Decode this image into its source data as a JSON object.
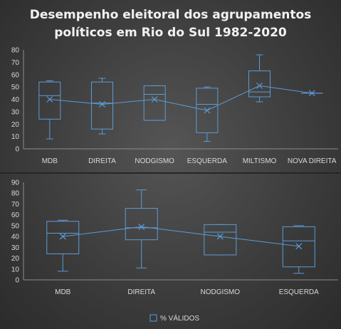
{
  "title_line1": "Desempenho eleitoral dos agrupamentos",
  "title_line2": "políticos em Rio do Sul 1982-2020",
  "legend_label": "% VÁLIDOS",
  "colors": {
    "box": "#5b9bd5",
    "text": "#d9d9d9",
    "grid": "#5a5a5a"
  },
  "chart_data": [
    {
      "type": "box",
      "ylim": [
        0,
        80
      ],
      "yticks": [
        0,
        10,
        20,
        30,
        40,
        50,
        60,
        70,
        80
      ],
      "grid": false,
      "categories": [
        "MDB",
        "DIREITA",
        "NODGISMO",
        "ESQUERDA",
        "MILTISMO",
        "NOVA DIREITA"
      ],
      "boxes": [
        {
          "min": 8,
          "q1": 24,
          "median": 43,
          "q3": 54,
          "max": 55,
          "mean": 40
        },
        {
          "min": 12,
          "q1": 16,
          "median": 37,
          "q3": 54,
          "max": 57,
          "mean": 36
        },
        {
          "min": 23,
          "q1": 23,
          "median": 44,
          "q3": 51,
          "max": 51,
          "mean": 40
        },
        {
          "min": 6,
          "q1": 13,
          "median": 36,
          "q3": 49,
          "max": 50,
          "mean": 31
        },
        {
          "min": 38,
          "q1": 42,
          "median": 46,
          "q3": 63,
          "max": 76,
          "mean": 51
        },
        {
          "min": 45,
          "q1": 45,
          "median": 45,
          "q3": 45,
          "max": 45,
          "mean": 45
        }
      ]
    },
    {
      "type": "box",
      "ylim": [
        0,
        90
      ],
      "yticks": [
        0,
        10,
        20,
        30,
        40,
        50,
        60,
        70,
        80,
        90
      ],
      "grid": false,
      "categories": [
        "MDB",
        "DIREITA",
        "NODGISMO",
        "ESQUERDA"
      ],
      "boxes": [
        {
          "min": 8,
          "q1": 24,
          "median": 43,
          "q3": 54,
          "max": 55,
          "mean": 40
        },
        {
          "min": 11,
          "q1": 37,
          "median": 48,
          "q3": 66,
          "max": 83,
          "mean": 49
        },
        {
          "min": 23,
          "q1": 23,
          "median": 44,
          "q3": 51,
          "max": 51,
          "mean": 40
        },
        {
          "min": 6,
          "q1": 12,
          "median": 36,
          "q3": 49,
          "max": 50,
          "mean": 31
        }
      ]
    }
  ]
}
